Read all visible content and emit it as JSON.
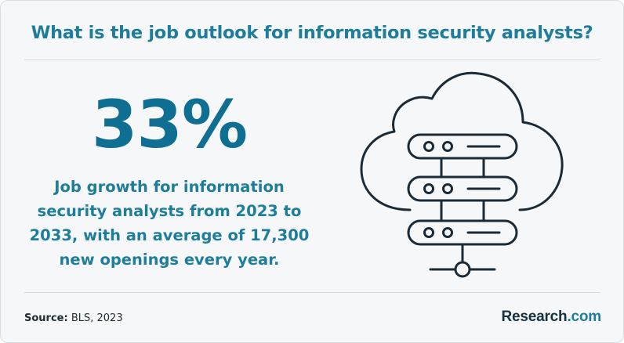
{
  "title": "What is the job outlook for information security analysts?",
  "stat": "33%",
  "description_lines": [
    "Job growth for information",
    "security analysts from 2023 to",
    "2033, with an average of 17,300",
    "new openings every year."
  ],
  "source": {
    "label": "Source:",
    "value": "BLS, 2023"
  },
  "brand": {
    "name": "Research",
    "suffix": ".com"
  },
  "colors": {
    "accent": "#1f7d9c",
    "stat": "#0f6f92",
    "icon_stroke": "#1a2a36",
    "background": "#f5f7f9"
  },
  "icon": "cloud-server-icon"
}
